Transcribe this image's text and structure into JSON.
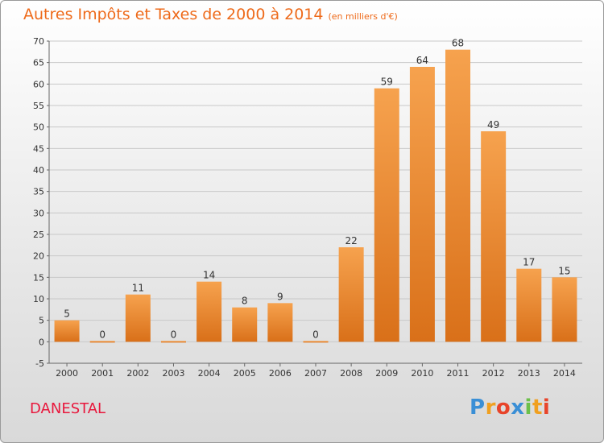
{
  "header": {
    "title": "Autres Impôts et Taxes de 2000 à 2014",
    "subtitle": "(en milliers d'€)"
  },
  "commune": "DANESTAL",
  "logo": {
    "letters": [
      "P",
      "r",
      "o",
      "x",
      "i",
      "t",
      "i"
    ],
    "colors": [
      "#3a8fd6",
      "#f0a020",
      "#e8442a",
      "#3a8fd6",
      "#6cc04a",
      "#f0a020",
      "#e8442a"
    ]
  },
  "colors": {
    "bar_top": "#f6a24e",
    "bar_bottom": "#d97019",
    "grid": "#c8c8c8",
    "title": "#ee6a1a",
    "commune": "#e8173c"
  },
  "chart_data": {
    "type": "bar",
    "title": "Autres Impôts et Taxes de 2000 à 2014",
    "subtitle": "(en milliers d'€)",
    "xlabel": "",
    "ylabel": "",
    "categories": [
      "2000",
      "2001",
      "2002",
      "2003",
      "2004",
      "2005",
      "2006",
      "2007",
      "2008",
      "2009",
      "2010",
      "2011",
      "2012",
      "2013",
      "2014"
    ],
    "values": [
      5,
      0,
      11,
      0,
      14,
      8,
      9,
      0,
      22,
      59,
      64,
      68,
      49,
      17,
      15
    ],
    "ylim": [
      -5,
      70
    ],
    "yticks": [
      -5,
      0,
      5,
      10,
      15,
      20,
      25,
      30,
      35,
      40,
      45,
      50,
      55,
      60,
      65,
      70
    ],
    "grid": true,
    "legend": "none"
  }
}
